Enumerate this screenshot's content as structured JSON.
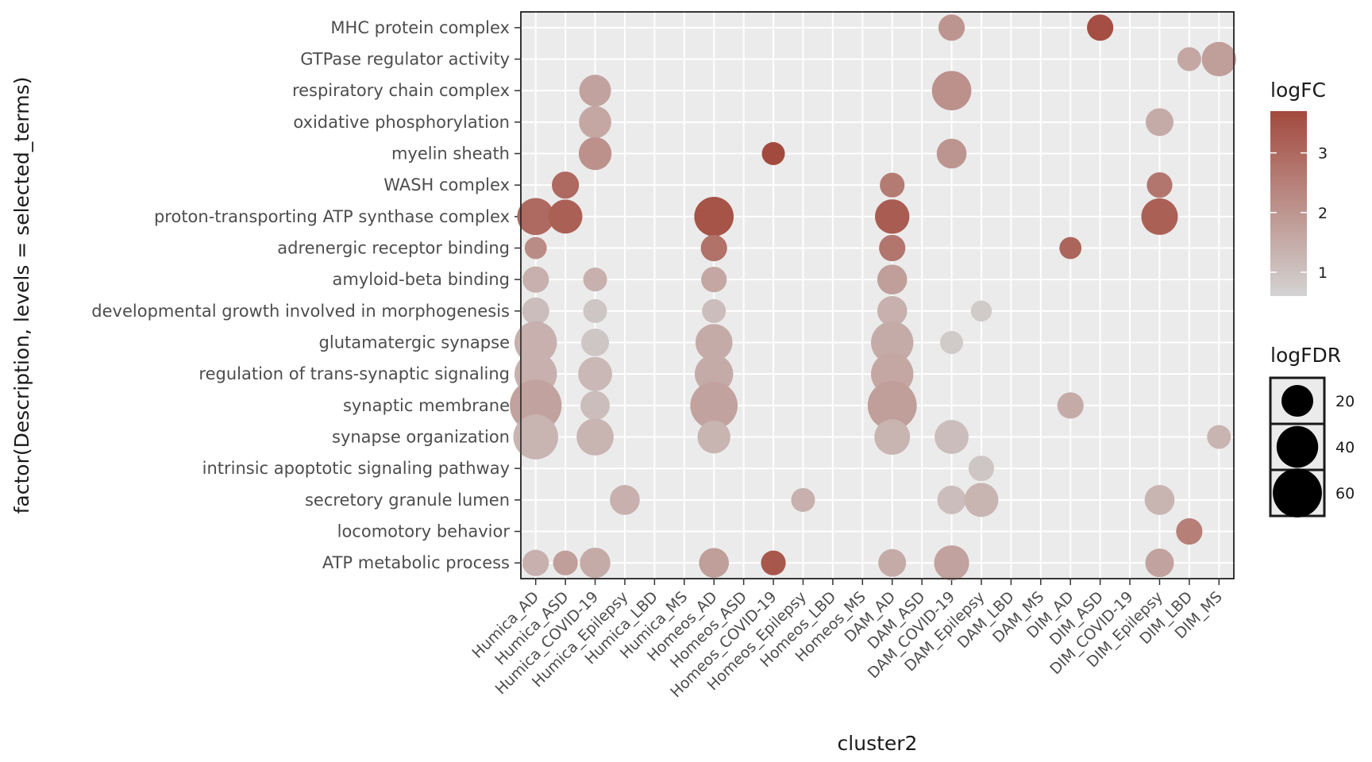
{
  "chart_data": {
    "type": "scatter",
    "title": "",
    "xlabel": "cluster2",
    "ylabel": "factor(Description, levels = selected_terms)",
    "grid": true,
    "legend_position": "right",
    "x_categories": [
      "Humica_AD",
      "Humica_ASD",
      "Humica_COVID-19",
      "Humica_Epilepsy",
      "Humica_LBD",
      "Humica_MS",
      "Homeos_AD",
      "Homeos_ASD",
      "Homeos_COVID-19",
      "Homeos_Epilepsy",
      "Homeos_LBD",
      "Homeos_MS",
      "DAM_AD",
      "DAM_ASD",
      "DAM_COVID-19",
      "DAM_Epilepsy",
      "DAM_LBD",
      "DAM_MS",
      "DIM_AD",
      "DIM_ASD",
      "DIM_COVID-19",
      "DIM_Epilepsy",
      "DIM_LBD",
      "DIM_MS"
    ],
    "y_categories": [
      "MHC protein complex",
      "GTPase regulator activity",
      "respiratory chain complex",
      "oxidative phosphorylation",
      "myelin sheath",
      "WASH complex",
      "proton-transporting ATP synthase complex",
      "adrenergic receptor binding",
      "amyloid-beta binding",
      "developmental growth involved in morphogenesis",
      "glutamatergic synapse",
      "regulation of trans-synaptic signaling",
      "synaptic membrane",
      "synapse organization",
      "intrinsic apoptotic signaling pathway",
      "secretory granule lumen",
      "locomotory behavior",
      "ATP metabolic process"
    ],
    "color_legend": {
      "title": "logFC",
      "ticks": [
        1,
        2,
        3
      ],
      "min": 0.6,
      "max": 3.7,
      "low_color": "#d3d3d3",
      "high_color": "#a34a3e"
    },
    "size_legend": {
      "title": "logFDR",
      "ticks": [
        20,
        40,
        60
      ]
    },
    "points": [
      {
        "x": "DAM_COVID-19",
        "y": "MHC protein complex",
        "logFC": 2.0,
        "logFDR": 12
      },
      {
        "x": "DIM_ASD",
        "y": "MHC protein complex",
        "logFC": 3.6,
        "logFDR": 12
      },
      {
        "x": "DIM_LBD",
        "y": "GTPase regulator activity",
        "logFC": 1.6,
        "logFDR": 9
      },
      {
        "x": "DIM_MS",
        "y": "GTPase regulator activity",
        "logFC": 1.8,
        "logFDR": 25
      },
      {
        "x": "Humica_COVID-19",
        "y": "respiratory chain complex",
        "logFC": 1.7,
        "logFDR": 20
      },
      {
        "x": "DAM_COVID-19",
        "y": "respiratory chain complex",
        "logFC": 2.1,
        "logFDR": 35
      },
      {
        "x": "Humica_COVID-19",
        "y": "oxidative phosphorylation",
        "logFC": 1.6,
        "logFDR": 21
      },
      {
        "x": "DIM_Epilepsy",
        "y": "oxidative phosphorylation",
        "logFC": 1.5,
        "logFDR": 14
      },
      {
        "x": "Humica_COVID-19",
        "y": "myelin sheath",
        "logFC": 2.1,
        "logFDR": 22
      },
      {
        "x": "Homeos_COVID-19",
        "y": "myelin sheath",
        "logFC": 3.7,
        "logFDR": 8
      },
      {
        "x": "DAM_COVID-19",
        "y": "myelin sheath",
        "logFC": 2.0,
        "logFDR": 17
      },
      {
        "x": "Humica_ASD",
        "y": "WASH complex",
        "logFC": 3.0,
        "logFDR": 13
      },
      {
        "x": "DAM_AD",
        "y": "WASH complex",
        "logFC": 2.6,
        "logFDR": 10
      },
      {
        "x": "DIM_Epilepsy",
        "y": "WASH complex",
        "logFC": 2.7,
        "logFDR": 11
      },
      {
        "x": "Humica_AD",
        "y": "proton-transporting ATP synthase complex",
        "logFC": 3.0,
        "logFDR": 30
      },
      {
        "x": "Humica_ASD",
        "y": "proton-transporting ATP synthase complex",
        "logFC": 3.2,
        "logFDR": 24
      },
      {
        "x": "Homeos_AD",
        "y": "proton-transporting ATP synthase complex",
        "logFC": 3.5,
        "logFDR": 35
      },
      {
        "x": "DAM_AD",
        "y": "proton-transporting ATP synthase complex",
        "logFC": 3.3,
        "logFDR": 25
      },
      {
        "x": "DIM_Epilepsy",
        "y": "proton-transporting ATP synthase complex",
        "logFC": 3.2,
        "logFDR": 29
      },
      {
        "x": "Humica_AD",
        "y": "adrenergic receptor binding",
        "logFC": 2.2,
        "logFDR": 7
      },
      {
        "x": "Homeos_AD",
        "y": "adrenergic receptor binding",
        "logFC": 2.8,
        "logFDR": 12
      },
      {
        "x": "DAM_AD",
        "y": "adrenergic receptor binding",
        "logFC": 2.7,
        "logFDR": 12
      },
      {
        "x": "DIM_AD",
        "y": "adrenergic receptor binding",
        "logFC": 3.1,
        "logFDR": 7
      },
      {
        "x": "Humica_AD",
        "y": "amyloid-beta binding",
        "logFC": 1.4,
        "logFDR": 12
      },
      {
        "x": "Humica_COVID-19",
        "y": "amyloid-beta binding",
        "logFC": 1.4,
        "logFDR": 9
      },
      {
        "x": "Homeos_AD",
        "y": "amyloid-beta binding",
        "logFC": 1.6,
        "logFDR": 11
      },
      {
        "x": "DAM_AD",
        "y": "amyloid-beta binding",
        "logFC": 1.8,
        "logFDR": 17
      },
      {
        "x": "Humica_AD",
        "y": "developmental growth involved in morphogenesis",
        "logFC": 1.1,
        "logFDR": 13
      },
      {
        "x": "Humica_COVID-19",
        "y": "developmental growth involved in morphogenesis",
        "logFC": 0.9,
        "logFDR": 9
      },
      {
        "x": "Homeos_AD",
        "y": "developmental growth involved in morphogenesis",
        "logFC": 1.1,
        "logFDR": 9
      },
      {
        "x": "DAM_AD",
        "y": "developmental growth involved in morphogenesis",
        "logFC": 1.4,
        "logFDR": 17
      },
      {
        "x": "DAM_Epilepsy",
        "y": "developmental growth involved in morphogenesis",
        "logFC": 0.8,
        "logFDR": 6
      },
      {
        "x": "Humica_AD",
        "y": "glutamatergic synapse",
        "logFC": 1.4,
        "logFDR": 42
      },
      {
        "x": "Humica_COVID-19",
        "y": "glutamatergic synapse",
        "logFC": 0.9,
        "logFDR": 14
      },
      {
        "x": "Homeos_AD",
        "y": "glutamatergic synapse",
        "logFC": 1.5,
        "logFDR": 30
      },
      {
        "x": "DAM_AD",
        "y": "glutamatergic synapse",
        "logFC": 1.5,
        "logFDR": 42
      },
      {
        "x": "DAM_COVID-19",
        "y": "glutamatergic synapse",
        "logFC": 0.8,
        "logFDR": 8
      },
      {
        "x": "Humica_AD",
        "y": "regulation of trans-synaptic signaling",
        "logFC": 1.4,
        "logFDR": 42
      },
      {
        "x": "Humica_COVID-19",
        "y": "regulation of trans-synaptic signaling",
        "logFC": 1.2,
        "logFDR": 24
      },
      {
        "x": "Homeos_AD",
        "y": "regulation of trans-synaptic signaling",
        "logFC": 1.5,
        "logFDR": 33
      },
      {
        "x": "DAM_AD",
        "y": "regulation of trans-synaptic signaling",
        "logFC": 1.6,
        "logFDR": 42
      },
      {
        "x": "Humica_AD",
        "y": "synaptic membrane",
        "logFC": 1.7,
        "logFDR": 68
      },
      {
        "x": "Humica_COVID-19",
        "y": "synaptic membrane",
        "logFC": 1.1,
        "logFDR": 16
      },
      {
        "x": "Homeos_AD",
        "y": "synaptic membrane",
        "logFC": 1.7,
        "logFDR": 55
      },
      {
        "x": "DAM_AD",
        "y": "synaptic membrane",
        "logFC": 1.8,
        "logFDR": 60
      },
      {
        "x": "DIM_AD",
        "y": "synaptic membrane",
        "logFC": 1.5,
        "logFDR": 12
      },
      {
        "x": "Humica_AD",
        "y": "synapse organization",
        "logFC": 1.3,
        "logFDR": 48
      },
      {
        "x": "Humica_COVID-19",
        "y": "synapse organization",
        "logFC": 1.3,
        "logFDR": 30
      },
      {
        "x": "Homeos_AD",
        "y": "synapse organization",
        "logFC": 1.3,
        "logFDR": 22
      },
      {
        "x": "DAM_AD",
        "y": "synapse organization",
        "logFC": 1.3,
        "logFDR": 27
      },
      {
        "x": "DAM_COVID-19",
        "y": "synapse organization",
        "logFC": 1.1,
        "logFDR": 24
      },
      {
        "x": "DIM_MS",
        "y": "synapse organization",
        "logFC": 1.3,
        "logFDR": 9
      },
      {
        "x": "DAM_Epilepsy",
        "y": "intrinsic apoptotic signaling pathway",
        "logFC": 0.9,
        "logFDR": 11
      },
      {
        "x": "Humica_Epilepsy",
        "y": "secretory granule lumen",
        "logFC": 1.4,
        "logFDR": 17
      },
      {
        "x": "Homeos_Epilepsy",
        "y": "secretory granule lumen",
        "logFC": 1.4,
        "logFDR": 9
      },
      {
        "x": "DAM_COVID-19",
        "y": "secretory granule lumen",
        "logFC": 1.1,
        "logFDR": 15
      },
      {
        "x": "DAM_Epilepsy",
        "y": "secretory granule lumen",
        "logFC": 1.3,
        "logFDR": 24
      },
      {
        "x": "DIM_Epilepsy",
        "y": "secretory granule lumen",
        "logFC": 1.3,
        "logFDR": 17
      },
      {
        "x": "DIM_LBD",
        "y": "locomotory behavior",
        "logFC": 2.5,
        "logFDR": 12
      },
      {
        "x": "Humica_AD",
        "y": "ATP metabolic process",
        "logFC": 1.4,
        "logFDR": 12
      },
      {
        "x": "Humica_ASD",
        "y": "ATP metabolic process",
        "logFC": 1.8,
        "logFDR": 10
      },
      {
        "x": "Humica_COVID-19",
        "y": "ATP metabolic process",
        "logFC": 1.5,
        "logFDR": 18
      },
      {
        "x": "Homeos_AD",
        "y": "ATP metabolic process",
        "logFC": 1.8,
        "logFDR": 17
      },
      {
        "x": "Homeos_COVID-19",
        "y": "ATP metabolic process",
        "logFC": 3.4,
        "logFDR": 10
      },
      {
        "x": "DAM_AD",
        "y": "ATP metabolic process",
        "logFC": 1.5,
        "logFDR": 14
      },
      {
        "x": "DAM_COVID-19",
        "y": "ATP metabolic process",
        "logFC": 1.7,
        "logFDR": 26
      },
      {
        "x": "DIM_Epilepsy",
        "y": "ATP metabolic process",
        "logFC": 1.7,
        "logFDR": 15
      }
    ]
  }
}
